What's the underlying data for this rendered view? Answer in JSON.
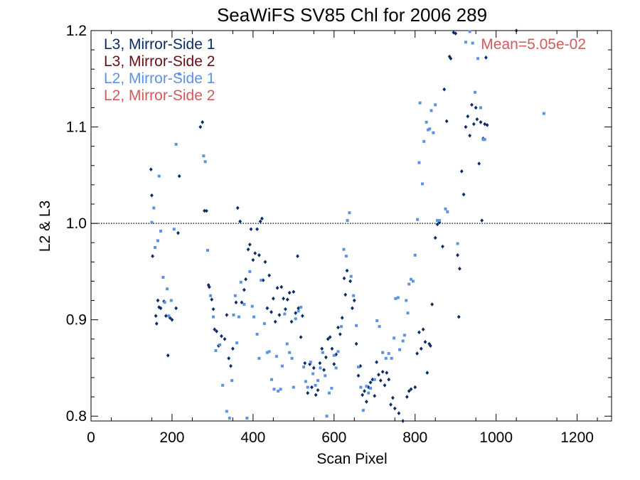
{
  "chart_data": {
    "type": "scatter",
    "title": "SeaWiFS SV85 Chl for 2006 289",
    "xlabel": "Scan Pixel",
    "ylabel": "L2 & L3",
    "xlim": [
      0,
      1285
    ],
    "ylim": [
      0.795,
      1.2
    ],
    "xticks": [
      0,
      200,
      400,
      600,
      800,
      1000,
      1200
    ],
    "xtick_labels": [
      "0",
      "200",
      "400",
      "600",
      "800",
      "1000",
      "1200"
    ],
    "yticks": [
      0.8,
      0.9,
      1.0,
      1.1,
      1.2
    ],
    "ytick_labels": [
      "0.8",
      "0.9",
      "1.0",
      "1.1",
      "1.2"
    ],
    "reference_line": {
      "y": 1.0,
      "style": "dotted"
    },
    "annotation": {
      "text": "Mean=5.05e-02",
      "color": "#d25a5a"
    },
    "legend_position": "top-left",
    "series": [
      {
        "name": "L3, Mirror-Side 1",
        "color": "#0a2c66",
        "marker": "diamond",
        "points": [
          [
            148,
            1.056
          ],
          [
            150,
            1.029
          ],
          [
            152,
            0.966
          ],
          [
            160,
            0.904
          ],
          [
            162,
            0.896
          ],
          [
            165,
            0.92
          ],
          [
            168,
            0.913
          ],
          [
            172,
            0.912
          ],
          [
            180,
            0.919
          ],
          [
            185,
            0.904
          ],
          [
            190,
            0.863
          ],
          [
            195,
            0.902
          ],
          [
            200,
            0.9
          ],
          [
            210,
            0.912
          ],
          [
            215,
            0.99
          ],
          [
            218,
            1.049
          ],
          [
            270,
            1.1
          ],
          [
            275,
            1.105
          ],
          [
            280,
            1.013
          ],
          [
            285,
            1.013
          ],
          [
            290,
            0.936
          ],
          [
            292,
            0.934
          ],
          [
            298,
            0.921
          ],
          [
            302,
            0.911
          ],
          [
            305,
            0.89
          ],
          [
            310,
            0.888
          ],
          [
            315,
            0.873
          ],
          [
            322,
            0.883
          ],
          [
            330,
            0.88
          ],
          [
            335,
            0.905
          ],
          [
            340,
            0.86
          ],
          [
            345,
            0.852
          ],
          [
            350,
            0.87
          ],
          [
            358,
            0.918
          ],
          [
            362,
            1.016
          ],
          [
            368,
            1.002
          ],
          [
            372,
            0.918
          ],
          [
            378,
            0.931
          ],
          [
            382,
            0.942
          ],
          [
            388,
            0.973
          ],
          [
            392,
            0.978
          ],
          [
            395,
            0.994
          ],
          [
            400,
            0.962
          ],
          [
            405,
            0.969
          ],
          [
            410,
            0.994
          ],
          [
            415,
            0.967
          ],
          [
            418,
            1.002
          ],
          [
            422,
            1.005
          ],
          [
            425,
            0.941
          ],
          [
            430,
            0.96
          ],
          [
            435,
            0.912
          ],
          [
            440,
            0.946
          ],
          [
            445,
            0.908
          ],
          [
            450,
            0.922
          ],
          [
            455,
            0.898
          ],
          [
            460,
            0.933
          ],
          [
            465,
            0.905
          ],
          [
            470,
            0.934
          ],
          [
            475,
            0.922
          ],
          [
            480,
            0.911
          ],
          [
            485,
            0.921
          ],
          [
            490,
            0.928
          ],
          [
            495,
            0.898
          ],
          [
            500,
            0.929
          ],
          [
            505,
            0.907
          ],
          [
            510,
            0.966
          ],
          [
            512,
            0.912
          ],
          [
            518,
            0.882
          ],
          [
            522,
            0.904
          ],
          [
            528,
            0.855
          ],
          [
            535,
            0.824
          ],
          [
            540,
            0.854
          ],
          [
            545,
            0.83
          ],
          [
            550,
            0.85
          ],
          [
            555,
            0.822
          ],
          [
            560,
            0.827
          ],
          [
            565,
            0.855
          ],
          [
            570,
            0.87
          ],
          [
            575,
            0.848
          ],
          [
            580,
            0.861
          ],
          [
            585,
            0.88
          ],
          [
            590,
            0.882
          ],
          [
            595,
            0.87
          ],
          [
            600,
            0.854
          ],
          [
            605,
            0.864
          ],
          [
            610,
            0.892
          ],
          [
            615,
            0.885
          ],
          [
            620,
            0.902
          ],
          [
            625,
            0.943
          ],
          [
            628,
            0.926
          ],
          [
            632,
            0.951
          ],
          [
            640,
            0.94
          ],
          [
            645,
            0.912
          ],
          [
            650,
            0.92
          ],
          [
            655,
            0.875
          ],
          [
            660,
            0.842
          ],
          [
            665,
            0.852
          ],
          [
            670,
            0.822
          ],
          [
            675,
            0.826
          ],
          [
            680,
            0.815
          ],
          [
            685,
            0.83
          ],
          [
            690,
            0.835
          ],
          [
            695,
            0.838
          ],
          [
            700,
            0.821
          ],
          [
            705,
            0.856
          ],
          [
            710,
            0.843
          ],
          [
            715,
            0.837
          ],
          [
            720,
            0.846
          ],
          [
            725,
            0.832
          ],
          [
            730,
            0.845
          ],
          [
            735,
            0.838
          ],
          [
            740,
            0.812
          ],
          [
            745,
            0.819
          ],
          [
            750,
            0.808
          ],
          [
            760,
            0.803
          ],
          [
            770,
            0.795
          ],
          [
            780,
            0.82
          ],
          [
            785,
            0.826
          ],
          [
            790,
            0.828
          ],
          [
            800,
            0.83
          ],
          [
            805,
            0.865
          ],
          [
            810,
            0.887
          ],
          [
            815,
            0.87
          ],
          [
            820,
            0.89
          ],
          [
            825,
            0.877
          ],
          [
            830,
            0.845
          ],
          [
            835,
            0.875
          ],
          [
            838,
            0.873
          ],
          [
            842,
            0.916
          ],
          [
            850,
            0.985
          ],
          [
            855,
            0.999
          ],
          [
            860,
            1.001
          ],
          [
            868,
            0.976
          ],
          [
            872,
            1.139
          ],
          [
            878,
            1.106
          ],
          [
            885,
            1.173
          ],
          [
            888,
            1.171
          ],
          [
            895,
            1.198
          ],
          [
            900,
            1.197
          ],
          [
            905,
            0.967
          ],
          [
            908,
            0.903
          ],
          [
            910,
            0.953
          ],
          [
            915,
            1.054
          ],
          [
            920,
            1.03
          ],
          [
            925,
            1.1
          ],
          [
            930,
            1.111
          ],
          [
            935,
            1.091
          ],
          [
            940,
            1.123
          ],
          [
            945,
            1.103
          ],
          [
            950,
            1.12
          ],
          [
            953,
            1.108
          ],
          [
            958,
            1.062
          ],
          [
            962,
            1.105
          ],
          [
            965,
            1.003
          ],
          [
            968,
            1.088
          ],
          [
            972,
            1.103
          ],
          [
            975,
            1.172
          ],
          [
            978,
            1.102
          ],
          [
            1050,
            1.2
          ]
        ]
      },
      {
        "name": "L3, Mirror-Side 2",
        "color": "#6b0d14",
        "marker": "diamond",
        "points": []
      },
      {
        "name": "L2, Mirror-Side 1",
        "color": "#5b93e6",
        "marker": "square",
        "points": [
          [
            150,
            1.001
          ],
          [
            155,
            1.016
          ],
          [
            158,
            0.975
          ],
          [
            165,
            0.982
          ],
          [
            168,
            1.049
          ],
          [
            172,
            0.992
          ],
          [
            178,
            0.944
          ],
          [
            182,
            0.918
          ],
          [
            188,
            0.932
          ],
          [
            192,
            0.904
          ],
          [
            198,
            0.92
          ],
          [
            205,
            0.994
          ],
          [
            210,
            1.082
          ],
          [
            218,
            1.155
          ],
          [
            278,
            1.07
          ],
          [
            282,
            1.064
          ],
          [
            288,
            0.972
          ],
          [
            295,
            0.925
          ],
          [
            302,
            0.903
          ],
          [
            308,
            0.868
          ],
          [
            318,
            0.874
          ],
          [
            325,
            0.832
          ],
          [
            335,
            0.805
          ],
          [
            342,
            0.798
          ],
          [
            348,
            0.837
          ],
          [
            352,
            0.905
          ],
          [
            356,
            0.925
          ],
          [
            360,
            0.876
          ],
          [
            365,
            0.903
          ],
          [
            370,
            0.939
          ],
          [
            378,
            0.916
          ],
          [
            385,
            0.798
          ],
          [
            392,
            0.95
          ],
          [
            398,
            0.914
          ],
          [
            402,
            0.903
          ],
          [
            410,
            0.885
          ],
          [
            415,
            0.86
          ],
          [
            420,
            0.941
          ],
          [
            428,
            0.896
          ],
          [
            435,
            0.866
          ],
          [
            440,
            0.867
          ],
          [
            446,
            0.838
          ],
          [
            452,
            0.828
          ],
          [
            458,
            0.862
          ],
          [
            462,
            0.826
          ],
          [
            468,
            0.828
          ],
          [
            472,
            0.852
          ],
          [
            478,
            0.906
          ],
          [
            484,
            0.875
          ],
          [
            490,
            0.866
          ],
          [
            496,
            0.86
          ],
          [
            500,
            0.83
          ],
          [
            505,
            0.901
          ],
          [
            512,
            0.909
          ],
          [
            518,
            0.913
          ],
          [
            525,
            0.851
          ],
          [
            530,
            0.836
          ],
          [
            535,
            0.83
          ],
          [
            542,
            0.856
          ],
          [
            548,
            0.844
          ],
          [
            554,
            0.832
          ],
          [
            560,
            0.837
          ],
          [
            566,
            0.85
          ],
          [
            572,
            0.866
          ],
          [
            578,
            0.842
          ],
          [
            582,
            0.8
          ],
          [
            588,
            0.824
          ],
          [
            594,
            0.829
          ],
          [
            600,
            0.863
          ],
          [
            605,
            0.85
          ],
          [
            610,
            0.867
          ],
          [
            618,
            0.893
          ],
          [
            624,
            0.973
          ],
          [
            630,
            0.966
          ],
          [
            633,
            1.003
          ],
          [
            638,
            1.011
          ],
          [
            642,
            0.945
          ],
          [
            648,
            0.925
          ],
          [
            655,
            0.894
          ],
          [
            660,
            0.851
          ],
          [
            666,
            0.83
          ],
          [
            672,
            0.806
          ],
          [
            680,
            0.831
          ],
          [
            685,
            0.824
          ],
          [
            690,
            0.829
          ],
          [
            700,
            0.838
          ],
          [
            706,
            0.899
          ],
          [
            712,
            0.893
          ],
          [
            720,
            0.866
          ],
          [
            728,
            0.86
          ],
          [
            735,
            0.865
          ],
          [
            742,
            0.86
          ],
          [
            748,
            0.881
          ],
          [
            752,
            0.922
          ],
          [
            758,
            0.923
          ],
          [
            762,
            0.869
          ],
          [
            770,
            0.878
          ],
          [
            774,
            0.884
          ],
          [
            778,
            0.92
          ],
          [
            782,
            0.907
          ],
          [
            785,
            0.937
          ],
          [
            790,
            0.942
          ],
          [
            795,
            0.94
          ],
          [
            800,
            0.967
          ],
          [
            806,
            1.004
          ],
          [
            810,
            1.063
          ],
          [
            812,
            1.125
          ],
          [
            818,
            1.041
          ],
          [
            822,
            1.085
          ],
          [
            828,
            1.105
          ],
          [
            832,
            1.097
          ],
          [
            836,
            1.098
          ],
          [
            840,
            1.117
          ],
          [
            845,
            1.094
          ],
          [
            850,
            1.123
          ],
          [
            855,
            1.003
          ],
          [
            860,
            1.003
          ],
          [
            875,
            1.015
          ],
          [
            880,
            1.012
          ],
          [
            905,
            0.979
          ],
          [
            925,
            1.188
          ],
          [
            935,
            1.199
          ],
          [
            942,
            1.187
          ],
          [
            948,
            1.136
          ],
          [
            955,
            1.171
          ],
          [
            962,
            1.12
          ],
          [
            968,
            1.087
          ],
          [
            972,
            1.087
          ],
          [
            1118,
            1.114
          ]
        ]
      },
      {
        "name": "L2, Mirror-Side 2",
        "color": "#d25a5a",
        "marker": "square",
        "points": []
      }
    ]
  }
}
